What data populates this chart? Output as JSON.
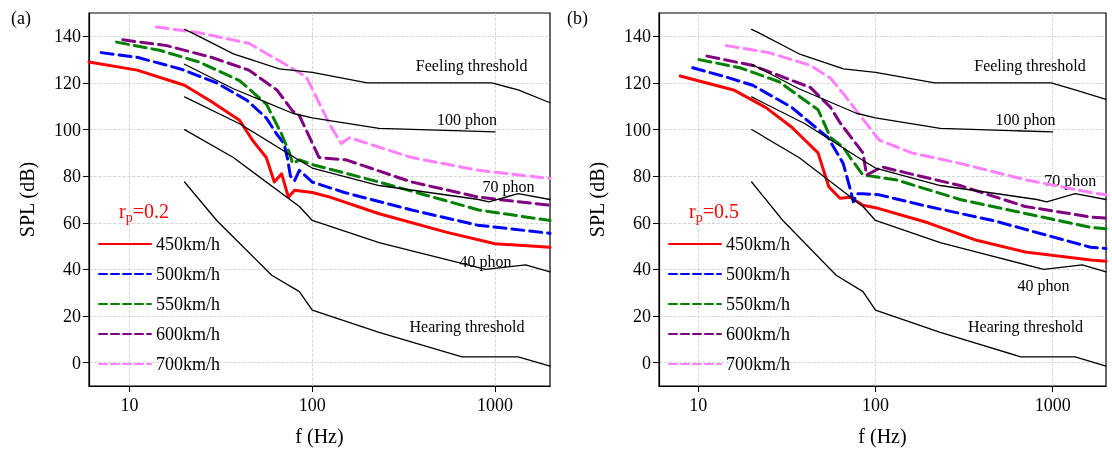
{
  "chart_data": [
    {
      "type": "line",
      "title": "(a)",
      "xlabel": "f (Hz)",
      "ylabel": "SPL (dB)",
      "legend_title": "r$_{p}$=0.2",
      "log": "x",
      "xlim": [
        6,
        2000
      ],
      "xticks": [
        10,
        100,
        1000
      ],
      "ylim": [
        -10,
        150
      ],
      "yticks": [
        0,
        20,
        40,
        60,
        80,
        100,
        120,
        140
      ],
      "grid": true,
      "legend": "bottom left",
      "marker": "none",
      "series": [
        {
          "name": "450km/h",
          "color": "#ff0000",
          "line_style": "solid",
          "x": [
            6,
            11,
            20,
            28,
            40,
            47,
            56,
            62,
            68,
            74,
            80,
            100,
            125,
            230,
            540,
            1000,
            2000
          ],
          "values": [
            129,
            125.5,
            119,
            112,
            104,
            95.5,
            88,
            77.5,
            81,
            71,
            74,
            73,
            71,
            64,
            56,
            51,
            49.5
          ]
        },
        {
          "name": "500km/h",
          "color": "#0000ff",
          "line_style": "dashed",
          "x": [
            7,
            11,
            19,
            30,
            44,
            56,
            64,
            70,
            73,
            76,
            80,
            85,
            100,
            150,
            350,
            800,
            2000
          ],
          "values": [
            133,
            131,
            126,
            120,
            112.5,
            105,
            98,
            94,
            88,
            80,
            78,
            82.5,
            77.5,
            73,
            65.5,
            59,
            55.5
          ]
        },
        {
          "name": "550km/h",
          "color": "#008000",
          "line_style": "dashed",
          "x": [
            8.5,
            14.6,
            24,
            40,
            56,
            68,
            75,
            78,
            85,
            100,
            232,
            815,
            2000
          ],
          "values": [
            137.5,
            134,
            129,
            121,
            111,
            98,
            90,
            85.5,
            87,
            85,
            77.5,
            65.5,
            61
          ]
        },
        {
          "name": "600km/h",
          "color": "#800080",
          "line_style": "dashed",
          "x": [
            9.2,
            16,
            28,
            45,
            64,
            78,
            85,
            109,
            153,
            350,
            815,
            2000
          ],
          "values": [
            138.5,
            136,
            131,
            125.5,
            117,
            108,
            106,
            88,
            87,
            77.5,
            71,
            67.5
          ]
        },
        {
          "name": "700km/h",
          "color": "#ff80ff",
          "line_style": "dashed",
          "x": [
            14,
            24,
            45,
            66,
            93,
            124,
            144,
            160,
            350,
            815,
            2000
          ],
          "values": [
            144,
            141.5,
            137,
            129.5,
            122.5,
            102.5,
            94,
            96.5,
            88,
            82.5,
            79
          ]
        },
        {
          "color": "#000000",
          "line_style": "solid",
          "x": [
            20,
            22,
            37,
            66,
            100,
            200,
            960,
            1340,
            2000
          ],
          "values": [
            143,
            141.5,
            132.5,
            126,
            124.5,
            120,
            120,
            117,
            111.5
          ]
        },
        {
          "color": "#000000",
          "line_style": "solid",
          "x": [
            20,
            37,
            78,
            100,
            232,
            1000
          ],
          "values": [
            128,
            117.5,
            107,
            105,
            100.5,
            99
          ]
        },
        {
          "color": "#000000",
          "line_style": "solid",
          "x": [
            20,
            40,
            82,
            100,
            232,
            815,
            925,
            1340,
            2000
          ],
          "values": [
            114,
            102.5,
            87.5,
            83.5,
            76,
            70,
            69,
            72.5,
            70
          ]
        },
        {
          "color": "#000000",
          "line_style": "solid",
          "x": [
            20,
            37,
            85,
            100,
            232,
            890,
            1470,
            2000
          ],
          "values": [
            100,
            88,
            67,
            61,
            51.5,
            40,
            42,
            39
          ]
        },
        {
          "color": "#000000",
          "line_style": "solid",
          "x": [
            20,
            30,
            60,
            85,
            100,
            232,
            660,
            1340,
            2000
          ],
          "values": [
            77.5,
            61,
            37.5,
            30.5,
            22.5,
            13,
            2.5,
            2.5,
            -1.5
          ]
        }
      ],
      "annotations": [
        "Feeling threshold",
        "100 phon",
        "70 phon",
        "40 phon",
        "Hearing threshold"
      ]
    },
    {
      "type": "line",
      "title": "(b)",
      "xlabel": "f (Hz)",
      "ylabel": "SPL (dB)",
      "legend_title": "r$_{p}$=0.5",
      "log": "x",
      "xlim": [
        6,
        2000
      ],
      "xticks": [
        10,
        100,
        1000
      ],
      "ylim": [
        -10,
        150
      ],
      "yticks": [
        0,
        20,
        40,
        60,
        80,
        100,
        120,
        140
      ],
      "grid": true,
      "legend": "bottom left",
      "marker": "none",
      "series": [
        {
          "name": "450km/h",
          "color": "#ff0000",
          "line_style": "solid",
          "x": [
            7.9,
            15.8,
            24,
            33.7,
            47.4,
            54.5,
            63,
            72,
            85,
            100,
            198,
            372,
            700,
            1640,
            2000
          ],
          "values": [
            123,
            117,
            109.5,
            101,
            90,
            75.5,
            70.5,
            71,
            67.5,
            66.5,
            60,
            52.5,
            47.5,
            44,
            43.5
          ]
        },
        {
          "name": "500km/h",
          "color": "#0000ff",
          "line_style": "dashed",
          "x": [
            9.3,
            14.4,
            20.3,
            33.7,
            54,
            65.7,
            72,
            75,
            78.6,
            85,
            105,
            198,
            460,
            1640,
            2000
          ],
          "values": [
            126.5,
            122.5,
            119,
            109.5,
            96.5,
            85.5,
            74.5,
            69,
            72.5,
            72.5,
            72,
            67,
            61,
            49.5,
            49
          ]
        },
        {
          "name": "550km/h",
          "color": "#008000",
          "line_style": "dashed",
          "x": [
            10.1,
            17.2,
            28.6,
            47.4,
            55.8,
            65.7,
            72,
            85,
            130,
            300,
            700,
            1640,
            2000
          ],
          "values": [
            130,
            126.5,
            120.5,
            108.5,
            96.5,
            92.5,
            88,
            80.5,
            78.5,
            70,
            64,
            58,
            57.5
          ]
        },
        {
          "name": "600km/h",
          "color": "#800080",
          "line_style": "dashed",
          "x": [
            11.2,
            20.3,
            43,
            55.8,
            63,
            85,
            89,
            109,
            130,
            300,
            700,
            1640,
            2000
          ],
          "values": [
            131.5,
            127.5,
            118,
            109.5,
            103,
            90,
            80.5,
            84,
            82.5,
            76,
            67,
            62.5,
            62
          ]
        },
        {
          "name": "700km/h",
          "color": "#ff80ff",
          "line_style": "dashed",
          "x": [
            14.4,
            25,
            43,
            55.8,
            65.7,
            72,
            105,
            160,
            300,
            700,
            1640,
            2000
          ],
          "values": [
            136,
            133,
            127.5,
            122,
            115.5,
            111.5,
            95.5,
            90,
            85.5,
            78.5,
            73,
            72
          ]
        },
        {
          "color": "#000000",
          "line_style": "solid",
          "x": [
            20,
            22,
            37,
            66,
            100,
            216,
            980,
            1340,
            2000
          ],
          "values": [
            143,
            141.5,
            132.5,
            126,
            124.5,
            120,
            120,
            117,
            113
          ]
        },
        {
          "color": "#000000",
          "line_style": "solid",
          "x": [
            20,
            37,
            78,
            100,
            232,
            1000
          ],
          "values": [
            128,
            117.5,
            107,
            105,
            100.5,
            99
          ]
        },
        {
          "color": "#000000",
          "line_style": "solid",
          "x": [
            20,
            40,
            82,
            100,
            232,
            815,
            925,
            1340,
            2000
          ],
          "values": [
            114,
            102.5,
            87.5,
            83.5,
            76,
            70,
            69,
            72.5,
            70
          ]
        },
        {
          "color": "#000000",
          "line_style": "solid",
          "x": [
            20,
            37,
            85,
            100,
            232,
            890,
            1470,
            2000
          ],
          "values": [
            100,
            88,
            67,
            61,
            51.5,
            40,
            42,
            39
          ]
        },
        {
          "color": "#000000",
          "line_style": "solid",
          "x": [
            20,
            30,
            60,
            85,
            100,
            232,
            660,
            1340,
            2000
          ],
          "values": [
            77.5,
            61,
            37.5,
            30.5,
            22.5,
            13,
            2.5,
            2.5,
            -1.5
          ]
        }
      ],
      "annotations": [
        "Feeling threshold",
        "100 phon",
        "70 phon",
        "40 phon",
        "Hearing threshold"
      ]
    }
  ]
}
